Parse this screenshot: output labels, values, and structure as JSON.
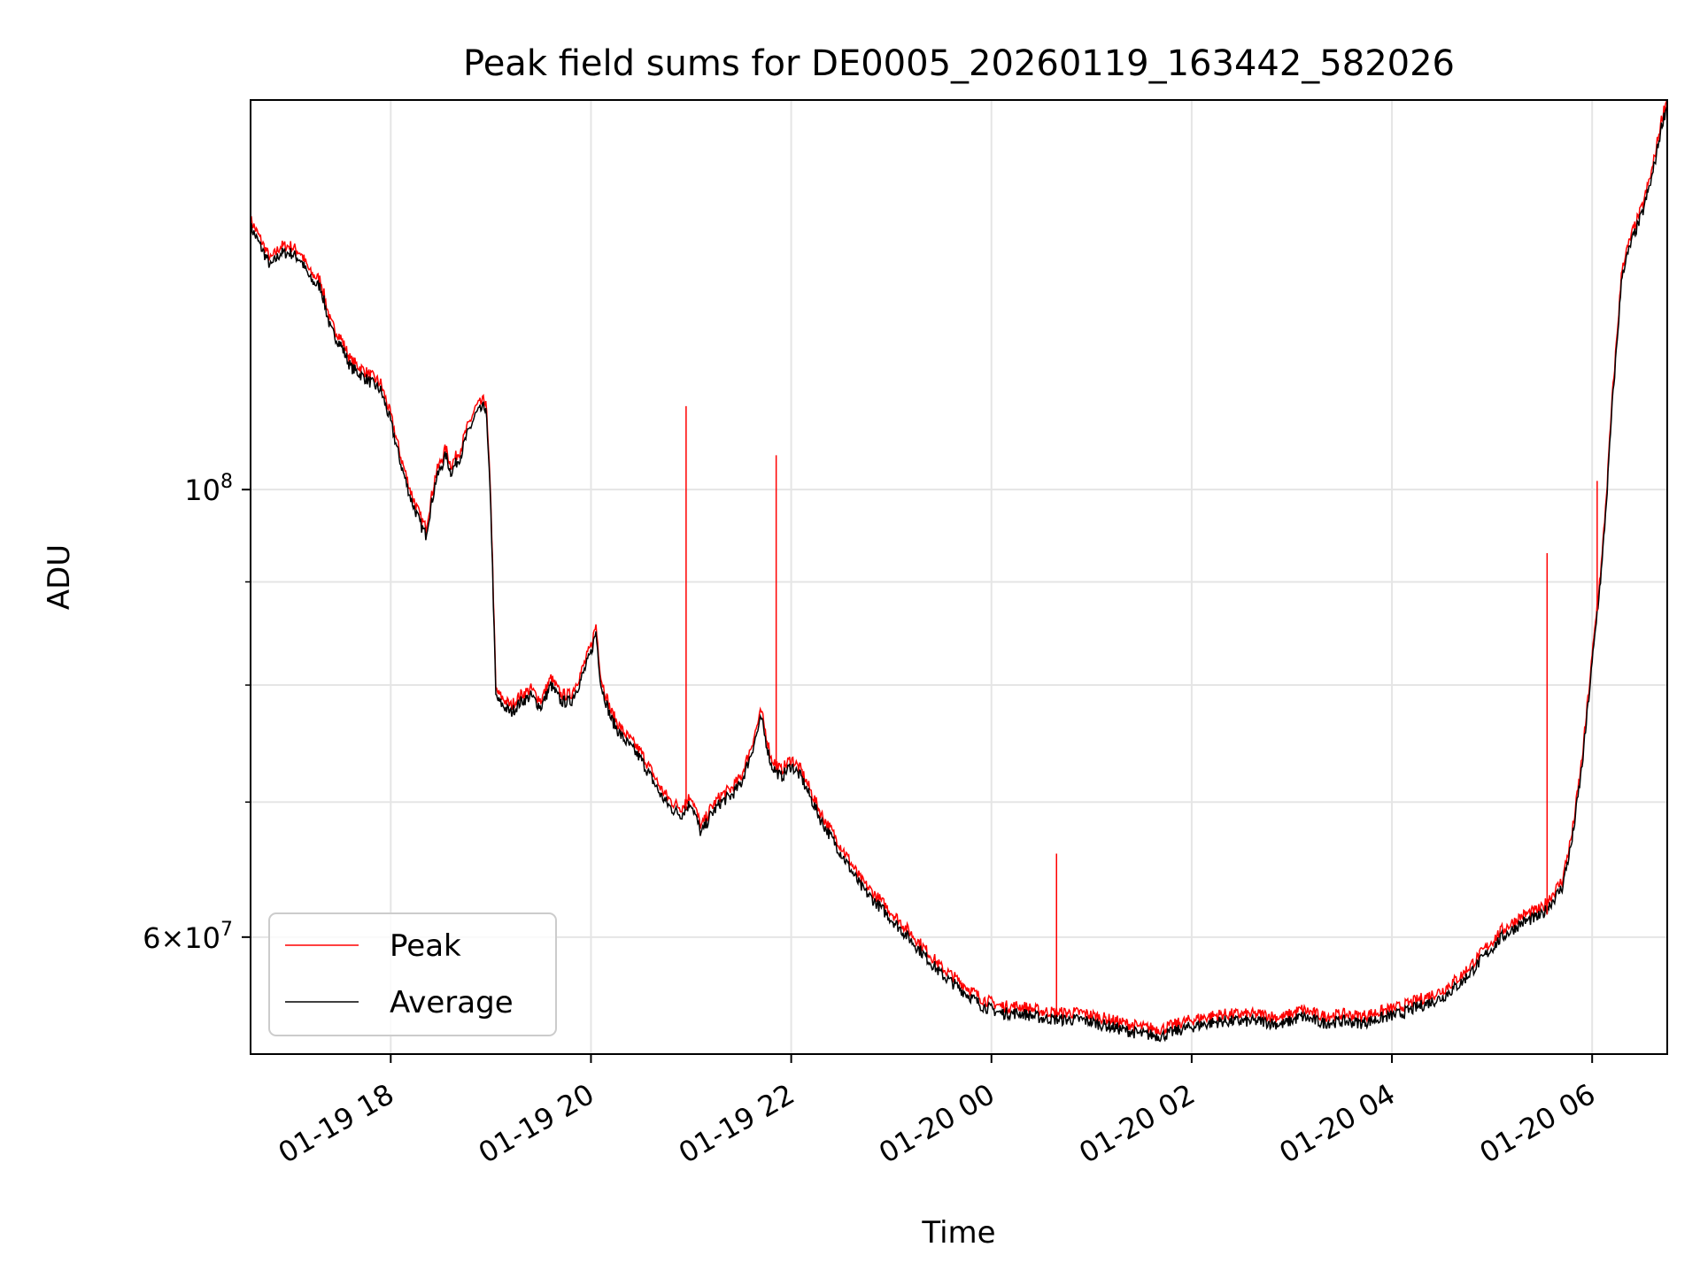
{
  "chart_data": {
    "type": "line",
    "title": "Peak field sums for DE0005_20260119_163442_582026",
    "xlabel": "Time",
    "ylabel": "ADU",
    "yscale": "log",
    "x_unit": "hours since 01-19 00:00",
    "xlim": [
      16.6,
      30.75
    ],
    "ylim": [
      52500000,
      156000000
    ],
    "xticks": [
      {
        "value": 18,
        "label": "01-19 18"
      },
      {
        "value": 20,
        "label": "01-19 20"
      },
      {
        "value": 22,
        "label": "01-19 22"
      },
      {
        "value": 24,
        "label": "01-20 00"
      },
      {
        "value": 26,
        "label": "01-20 02"
      },
      {
        "value": 28,
        "label": "01-20 04"
      },
      {
        "value": 30,
        "label": "01-20 06"
      }
    ],
    "yticks_major": [
      {
        "value": 100000000,
        "base": "10",
        "exp": "8"
      },
      {
        "value": 60000000,
        "base": "6×10",
        "exp": "7"
      }
    ],
    "yticks_minor": [
      70000000,
      80000000,
      90000000
    ],
    "grid": true,
    "legend": {
      "position": "lower-left",
      "entries": [
        "Peak",
        "Average"
      ]
    },
    "colors": {
      "peak": "#ff0000",
      "average": "#000000",
      "grid": "#e5e5e5"
    },
    "series": [
      {
        "name": "Average",
        "x": [
          16.6,
          16.7,
          16.8,
          16.9,
          17.0,
          17.1,
          17.2,
          17.3,
          17.4,
          17.5,
          17.6,
          17.7,
          17.8,
          17.9,
          18.0,
          18.1,
          18.2,
          18.3,
          18.35,
          18.45,
          18.55,
          18.6,
          18.7,
          18.75,
          18.85,
          18.95,
          19.0,
          19.05,
          19.08,
          19.2,
          19.3,
          19.4,
          19.5,
          19.6,
          19.7,
          19.8,
          19.9,
          20.0,
          20.05,
          20.1,
          20.2,
          20.3,
          20.5,
          20.6,
          20.7,
          20.8,
          20.9,
          21.0,
          21.1,
          21.2,
          21.3,
          21.4,
          21.5,
          21.6,
          21.7,
          21.8,
          21.9,
          22.0,
          22.1,
          22.3,
          22.5,
          22.7,
          22.9,
          23.1,
          23.3,
          23.5,
          23.7,
          23.9,
          24.1,
          24.3,
          24.5,
          24.7,
          24.9,
          25.1,
          25.3,
          25.5,
          25.7,
          25.9,
          26.1,
          26.3,
          26.5,
          26.7,
          26.9,
          27.1,
          27.3,
          27.5,
          27.7,
          27.9,
          28.1,
          28.3,
          28.5,
          28.7,
          28.9,
          29.1,
          29.3,
          29.5,
          29.6,
          29.7,
          29.8,
          29.9,
          30.0,
          30.1,
          30.15,
          30.2,
          30.3,
          30.4,
          30.5,
          30.6,
          30.7,
          30.75
        ],
        "y": [
          135000000,
          132000000,
          129000000,
          131000000,
          131000000,
          130000000,
          127000000,
          126000000,
          120000000,
          118000000,
          115000000,
          114000000,
          113000000,
          112000000,
          108000000,
          103000000,
          99000000,
          96000000,
          95000000,
          101000000,
          104000000,
          102000000,
          104000000,
          106000000,
          109000000,
          110000000,
          98000000,
          79000000,
          78500000,
          77500000,
          78500000,
          79000000,
          78000000,
          80000000,
          78500000,
          78500000,
          80500000,
          83000000,
          85000000,
          80000000,
          77000000,
          75500000,
          73500000,
          72000000,
          70500000,
          69500000,
          69000000,
          70000000,
          67500000,
          69000000,
          70000000,
          70500000,
          71500000,
          74000000,
          77000000,
          73000000,
          72000000,
          73000000,
          72000000,
          68500000,
          66000000,
          63500000,
          62000000,
          60500000,
          59000000,
          57500000,
          56500000,
          55500000,
          55000000,
          55000000,
          54700000,
          54600000,
          54600000,
          54300000,
          54000000,
          53700000,
          53600000,
          54000000,
          54300000,
          54500000,
          54500000,
          54500000,
          54300000,
          54800000,
          54400000,
          54500000,
          54400000,
          54700000,
          55000000,
          55500000,
          56000000,
          57000000,
          58500000,
          60000000,
          61000000,
          61500000,
          62500000,
          63500000,
          67000000,
          73000000,
          82000000,
          92000000,
          100000000,
          110000000,
          128000000,
          133000000,
          137000000,
          143000000,
          152000000,
          155000000
        ]
      },
      {
        "name": "Peak",
        "x": [
          20.95,
          21.85,
          24.65,
          29.55,
          30.05
        ],
        "y": [
          110000000,
          104000000,
          66000000,
          93000000,
          101000000
        ]
      }
    ]
  }
}
